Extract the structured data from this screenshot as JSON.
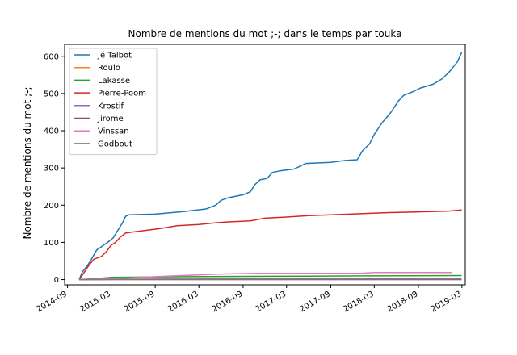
{
  "chart_data": {
    "type": "line",
    "title": "Nombre de mentions du mot ;-; dans le temps par touka",
    "xlabel": "",
    "ylabel": "Nombre de mentions du mot ;-;",
    "ylim": [
      -14,
      632
    ],
    "xlim": [
      "2014-08-20",
      "2019-03-15"
    ],
    "x_ticks": [
      "2014-09",
      "2015-03",
      "2015-09",
      "2016-03",
      "2016-09",
      "2017-03",
      "2017-09",
      "2018-03",
      "2018-09",
      "2019-03"
    ],
    "y_ticks": [
      0,
      100,
      200,
      300,
      400,
      500,
      600
    ],
    "grid": false,
    "legend_position": "upper-left",
    "series": [
      {
        "name": "Jé Talbot",
        "color": "#1f77b4",
        "points": [
          [
            "2014-10-20",
            0
          ],
          [
            "2014-11-01",
            20
          ],
          [
            "2014-11-20",
            35
          ],
          [
            "2014-12-10",
            55
          ],
          [
            "2015-01-01",
            80
          ],
          [
            "2015-01-20",
            88
          ],
          [
            "2015-02-15",
            100
          ],
          [
            "2015-03-10",
            112
          ],
          [
            "2015-04-01",
            135
          ],
          [
            "2015-04-20",
            155
          ],
          [
            "2015-05-01",
            170
          ],
          [
            "2015-05-15",
            174
          ],
          [
            "2015-09-01",
            176
          ],
          [
            "2016-01-01",
            183
          ],
          [
            "2016-04-01",
            190
          ],
          [
            "2016-05-10",
            200
          ],
          [
            "2016-06-01",
            213
          ],
          [
            "2016-07-01",
            220
          ],
          [
            "2016-09-01",
            228
          ],
          [
            "2016-10-01",
            236
          ],
          [
            "2016-10-20",
            255
          ],
          [
            "2016-11-10",
            268
          ],
          [
            "2016-12-10",
            272
          ],
          [
            "2017-01-01",
            288
          ],
          [
            "2017-02-01",
            292
          ],
          [
            "2017-04-01",
            297
          ],
          [
            "2017-05-20",
            312
          ],
          [
            "2017-09-01",
            315
          ],
          [
            "2017-11-01",
            320
          ],
          [
            "2017-12-20",
            322
          ],
          [
            "2018-01-10",
            345
          ],
          [
            "2018-02-10",
            365
          ],
          [
            "2018-03-01",
            390
          ],
          [
            "2018-04-01",
            420
          ],
          [
            "2018-05-10",
            450
          ],
          [
            "2018-06-10",
            480
          ],
          [
            "2018-07-01",
            495
          ],
          [
            "2018-08-10",
            505
          ],
          [
            "2018-09-10",
            515
          ],
          [
            "2018-11-01",
            525
          ],
          [
            "2018-12-10",
            540
          ],
          [
            "2019-01-10",
            560
          ],
          [
            "2019-02-10",
            585
          ],
          [
            "2019-02-28",
            610
          ]
        ]
      },
      {
        "name": "Roulo",
        "color": "#ff7f0e",
        "points": [
          [
            "2014-10-20",
            0
          ],
          [
            "2019-02-28",
            0
          ]
        ]
      },
      {
        "name": "Lakasse",
        "color": "#2ca02c",
        "points": [
          [
            "2014-10-20",
            0
          ],
          [
            "2015-01-01",
            3
          ],
          [
            "2015-03-01",
            6
          ],
          [
            "2016-01-01",
            8
          ],
          [
            "2017-01-01",
            9
          ],
          [
            "2018-01-01",
            10
          ],
          [
            "2019-02-28",
            11
          ]
        ]
      },
      {
        "name": "Pierre-Poom",
        "color": "#d62728",
        "points": [
          [
            "2014-10-20",
            0
          ],
          [
            "2014-11-10",
            20
          ],
          [
            "2014-12-01",
            40
          ],
          [
            "2014-12-20",
            55
          ],
          [
            "2015-01-20",
            62
          ],
          [
            "2015-02-10",
            75
          ],
          [
            "2015-03-01",
            92
          ],
          [
            "2015-03-20",
            100
          ],
          [
            "2015-04-10",
            115
          ],
          [
            "2015-05-01",
            125
          ],
          [
            "2015-06-01",
            128
          ],
          [
            "2015-08-01",
            133
          ],
          [
            "2015-10-01",
            138
          ],
          [
            "2015-12-01",
            145
          ],
          [
            "2016-03-01",
            148
          ],
          [
            "2016-05-01",
            152
          ],
          [
            "2016-07-01",
            155
          ],
          [
            "2016-10-01",
            158
          ],
          [
            "2016-12-01",
            165
          ],
          [
            "2017-03-01",
            168
          ],
          [
            "2017-06-01",
            172
          ],
          [
            "2017-09-01",
            174
          ],
          [
            "2018-01-01",
            177
          ],
          [
            "2018-05-01",
            180
          ],
          [
            "2018-09-01",
            182
          ],
          [
            "2019-01-01",
            184
          ],
          [
            "2019-02-28",
            187
          ]
        ]
      },
      {
        "name": "Krostif",
        "color": "#9467bd",
        "points": [
          [
            "2014-10-20",
            0
          ],
          [
            "2019-02-28",
            0
          ]
        ]
      },
      {
        "name": "Jirome",
        "color": "#8c564b",
        "points": [
          [
            "2014-10-20",
            0
          ],
          [
            "2015-06-01",
            1
          ],
          [
            "2019-02-28",
            2
          ]
        ]
      },
      {
        "name": "Vinssan",
        "color": "#e377c2",
        "points": [
          [
            "2014-10-20",
            0
          ],
          [
            "2015-04-01",
            3
          ],
          [
            "2015-09-01",
            8
          ],
          [
            "2016-02-01",
            12
          ],
          [
            "2016-06-01",
            15
          ],
          [
            "2016-11-01",
            17
          ],
          [
            "2017-06-01",
            17
          ],
          [
            "2018-01-01",
            17
          ],
          [
            "2018-03-01",
            19
          ],
          [
            "2019-01-20",
            19
          ]
        ]
      },
      {
        "name": "Godbout",
        "color": "#7f7f7f",
        "points": [
          [
            "2014-10-20",
            0
          ],
          [
            "2015-05-01",
            1
          ],
          [
            "2019-02-28",
            3
          ]
        ]
      }
    ]
  }
}
